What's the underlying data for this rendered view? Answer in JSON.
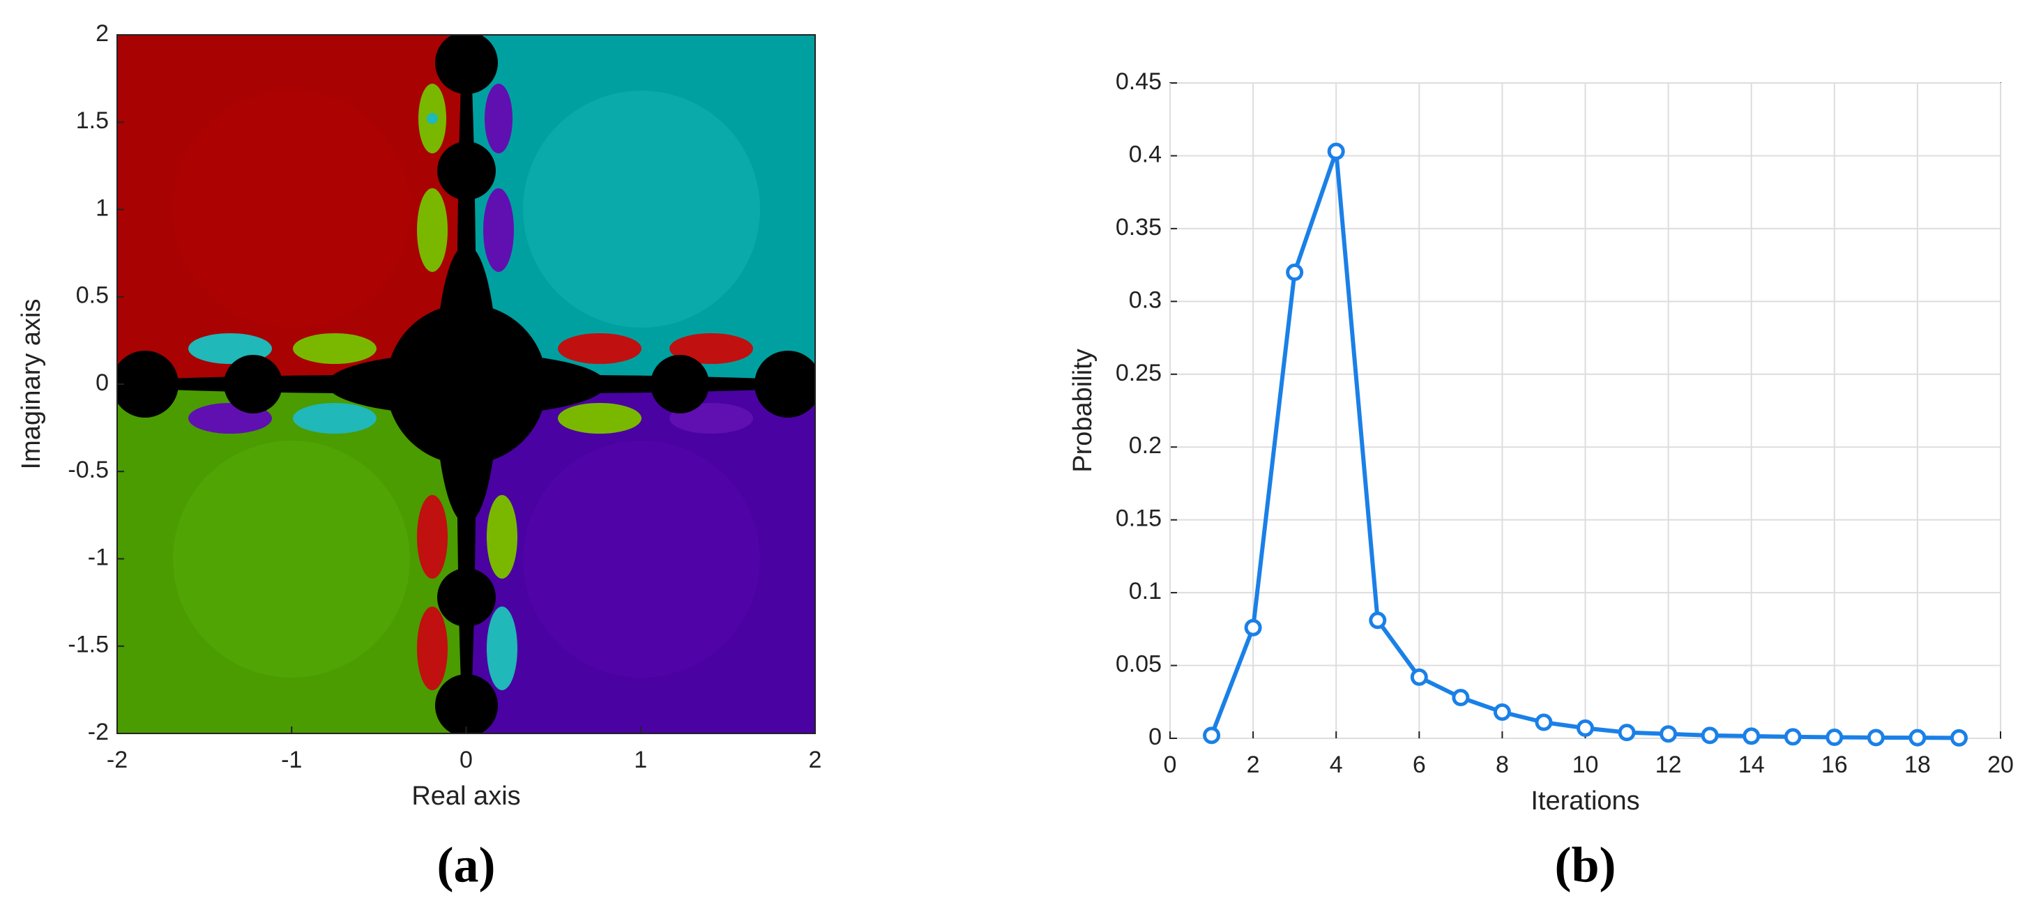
{
  "chart_data": [
    {
      "type": "basin",
      "xlabel": "Real axis",
      "ylabel": "Imaginary axis",
      "caption": "(a)",
      "xlim": [
        -2,
        2
      ],
      "ylim": [
        -2,
        2
      ],
      "xticks": [
        -2,
        -1,
        0,
        1,
        2
      ],
      "yticks": [
        -2,
        -1.5,
        -1,
        -0.5,
        0,
        0.5,
        1,
        1.5,
        2
      ]
    },
    {
      "type": "line",
      "xlabel": "Iterations",
      "ylabel": "Probability",
      "caption": "(b)",
      "x": [
        1,
        2,
        3,
        4,
        5,
        6,
        7,
        8,
        9,
        10,
        11,
        12,
        13,
        14,
        15,
        16,
        17,
        18,
        19
      ],
      "series": [
        {
          "color": "#1a80e8",
          "values": [
            0.002,
            0.076,
            0.32,
            0.403,
            0.081,
            0.042,
            0.028,
            0.018,
            0.011,
            0.007,
            0.004,
            0.003,
            0.002,
            0.0015,
            0.001,
            0.0007,
            0.0005,
            0.0004,
            0.0003
          ]
        }
      ],
      "xlim": [
        0,
        20
      ],
      "ylim": [
        0,
        0.45
      ],
      "xticks": [
        0,
        2,
        4,
        6,
        8,
        10,
        12,
        14,
        16,
        18,
        20
      ],
      "yticks": [
        0,
        0.05,
        0.1,
        0.15,
        0.2,
        0.25,
        0.3,
        0.35,
        0.4,
        0.45
      ],
      "grid": true
    }
  ]
}
